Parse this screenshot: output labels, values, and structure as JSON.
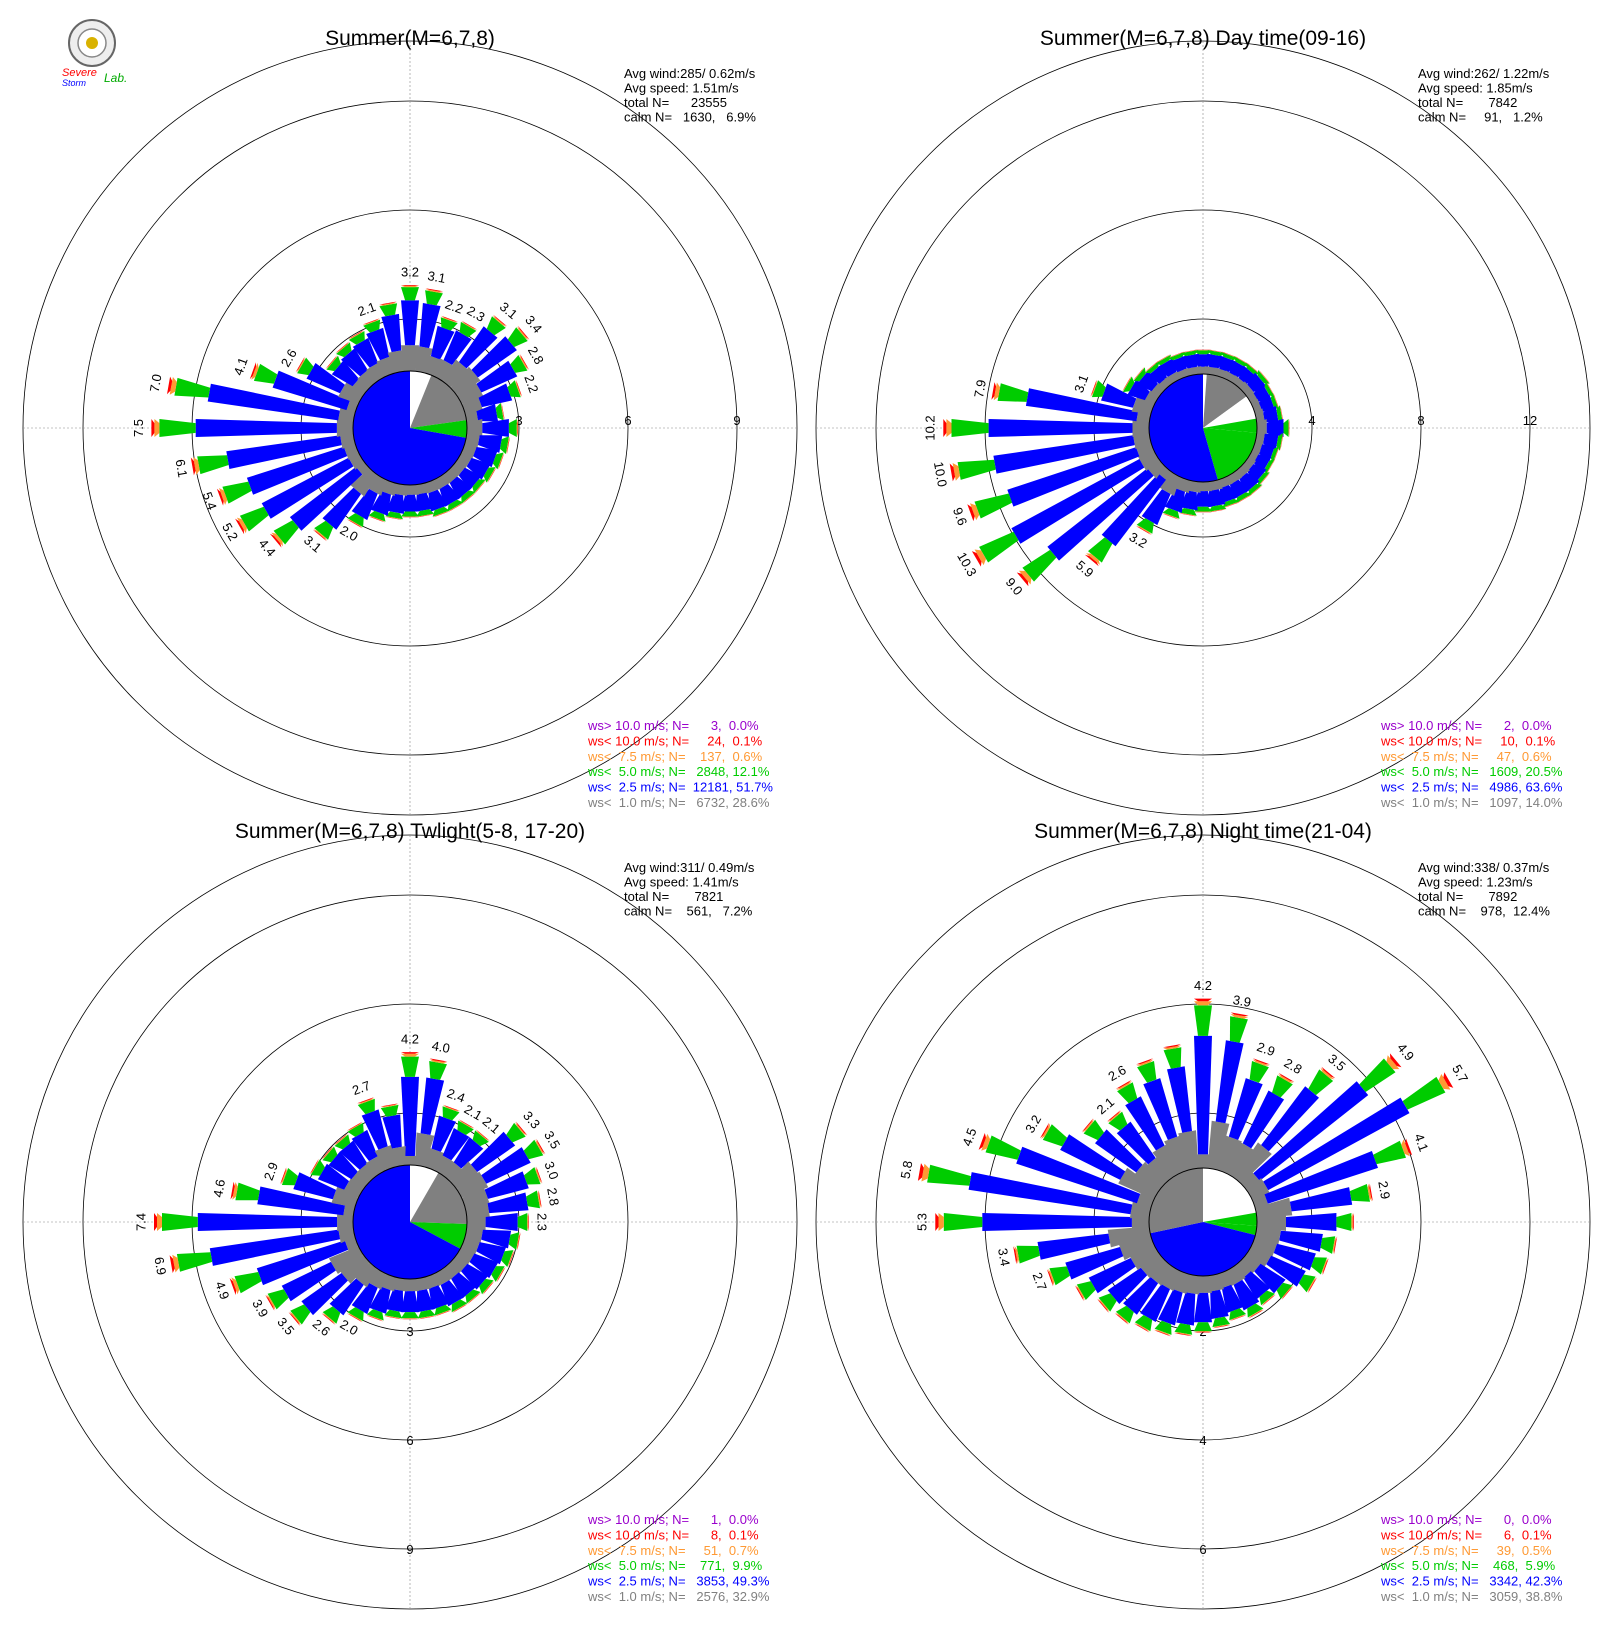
{
  "logo": {
    "line1": "Severe",
    "line2": "Storm",
    "line3": "Lab."
  },
  "colors": {
    "ws10plus": "#9900cc",
    "ws10": "#ff0000",
    "ws7_5": "#ff9933",
    "ws5": "#00cc00",
    "ws2_5": "#0000ff",
    "ws1": "#808080",
    "calm": "#ffffff"
  },
  "chart_data": [
    {
      "type": "wind-rose",
      "title": "Summer(M=6,7,8)",
      "rings": [
        3,
        6,
        9
      ],
      "stats": [
        "Avg wind:285/ 0.62m/s",
        "Avg speed: 1.51m/s",
        "total N=      23555",
        "calm N=   1630,   6.9%"
      ],
      "legend": [
        {
          "text": "ws> 10.0 m/s; N=      3,  0.0%",
          "color": "#9900cc"
        },
        {
          "text": "ws< 10.0 m/s; N=     24,  0.1%",
          "color": "#ff0000"
        },
        {
          "text": "ws<  7.5 m/s; N=    137,  0.6%",
          "color": "#ff9933"
        },
        {
          "text": "ws<  5.0 m/s; N=   2848, 12.1%",
          "color": "#00cc00"
        },
        {
          "text": "ws<  2.5 m/s; N=  12181, 51.7%",
          "color": "#0000ff"
        },
        {
          "text": "ws<  1.0 m/s; N=   6732, 28.6%",
          "color": "#808080"
        }
      ],
      "core": [
        {
          "from": 0,
          "to": 22,
          "color": "#ffffff"
        },
        {
          "from": 22,
          "to": 82,
          "color": "#808080"
        },
        {
          "from": 82,
          "to": 100,
          "color": "#00cc00"
        },
        {
          "from": 100,
          "to": 360,
          "color": "#0000ff"
        }
      ],
      "rays": [
        {
          "dir": 0,
          "total": 3.2,
          "label": "3.2"
        },
        {
          "dir": 10,
          "total": 3.1,
          "label": "3.1"
        },
        {
          "dir": 20,
          "total": 2.2,
          "label": "2.2"
        },
        {
          "dir": 30,
          "total": 2.3,
          "label": "2.3"
        },
        {
          "dir": 40,
          "total": 3.1,
          "label": "3.1"
        },
        {
          "dir": 50,
          "total": 3.4,
          "label": "3.4"
        },
        {
          "dir": 60,
          "total": 2.8,
          "label": "2.8"
        },
        {
          "dir": 70,
          "total": 2.2,
          "label": "2.2"
        },
        {
          "dir": 80,
          "total": 1.4,
          "label": ""
        },
        {
          "dir": 90,
          "total": 1.9,
          "label": ""
        },
        {
          "dir": 100,
          "total": 1.6,
          "label": ""
        },
        {
          "dir": 110,
          "total": 1.5,
          "label": ""
        },
        {
          "dir": 120,
          "total": 1.4,
          "label": ""
        },
        {
          "dir": 130,
          "total": 1.3,
          "label": ""
        },
        {
          "dir": 140,
          "total": 1.3,
          "label": ""
        },
        {
          "dir": 150,
          "total": 1.3,
          "label": ""
        },
        {
          "dir": 160,
          "total": 1.3,
          "label": ""
        },
        {
          "dir": 170,
          "total": 1.2,
          "label": ""
        },
        {
          "dir": 180,
          "total": 1.2,
          "label": ""
        },
        {
          "dir": 190,
          "total": 1.3,
          "label": ""
        },
        {
          "dir": 200,
          "total": 1.5,
          "label": ""
        },
        {
          "dir": 210,
          "total": 2.0,
          "label": "2.0"
        },
        {
          "dir": 220,
          "total": 3.1,
          "label": "3.1"
        },
        {
          "dir": 230,
          "total": 4.4,
          "label": "4.4"
        },
        {
          "dir": 240,
          "total": 5.2,
          "label": "5.2"
        },
        {
          "dir": 250,
          "total": 5.4,
          "label": "5.4"
        },
        {
          "dir": 260,
          "total": 6.1,
          "label": "6.1"
        },
        {
          "dir": 270,
          "total": 7.5,
          "label": "7.5"
        },
        {
          "dir": 280,
          "total": 7.0,
          "label": "7.0"
        },
        {
          "dir": 290,
          "total": 4.1,
          "label": "4.1"
        },
        {
          "dir": 300,
          "total": 2.6,
          "label": "2.6"
        },
        {
          "dir": 310,
          "total": 1.7,
          "label": ""
        },
        {
          "dir": 320,
          "total": 1.8,
          "label": ""
        },
        {
          "dir": 330,
          "total": 1.9,
          "label": ""
        },
        {
          "dir": 340,
          "total": 2.1,
          "label": "2.1"
        },
        {
          "dir": 350,
          "total": 2.6,
          "label": ""
        }
      ]
    },
    {
      "type": "wind-rose",
      "title": "Summer(M=6,7,8) Day time(09-16)",
      "rings": [
        4,
        8,
        12
      ],
      "stats": [
        "Avg wind:262/ 1.22m/s",
        "Avg speed: 1.85m/s",
        "total N=       7842",
        "calm N=     91,   1.2%"
      ],
      "legend": [
        {
          "text": "ws> 10.0 m/s; N=      2,  0.0%",
          "color": "#9900cc"
        },
        {
          "text": "ws< 10.0 m/s; N=     10,  0.1%",
          "color": "#ff0000"
        },
        {
          "text": "ws<  7.5 m/s; N=     47,  0.6%",
          "color": "#ff9933"
        },
        {
          "text": "ws<  5.0 m/s; N=   1609, 20.5%",
          "color": "#00cc00"
        },
        {
          "text": "ws<  2.5 m/s; N=   4986, 63.6%",
          "color": "#0000ff"
        },
        {
          "text": "ws<  1.0 m/s; N=   1097, 14.0%",
          "color": "#808080"
        }
      ],
      "core": [
        {
          "from": 0,
          "to": 4,
          "color": "#ffffff"
        },
        {
          "from": 4,
          "to": 54,
          "color": "#808080"
        },
        {
          "from": 54,
          "to": 80,
          "color": "#ffffff"
        },
        {
          "from": 80,
          "to": 95,
          "color": "#00cc00"
        },
        {
          "from": 95,
          "to": 164,
          "color": "#00cc00"
        },
        {
          "from": 164,
          "to": 360,
          "color": "#0000ff"
        }
      ],
      "rays": [
        {
          "dir": 0,
          "total": 1.2,
          "label": ""
        },
        {
          "dir": 10,
          "total": 1.2,
          "label": ""
        },
        {
          "dir": 20,
          "total": 1.2,
          "label": ""
        },
        {
          "dir": 30,
          "total": 1.2,
          "label": ""
        },
        {
          "dir": 40,
          "total": 1.2,
          "label": ""
        },
        {
          "dir": 50,
          "total": 1.3,
          "label": ""
        },
        {
          "dir": 60,
          "total": 1.2,
          "label": ""
        },
        {
          "dir": 70,
          "total": 1.2,
          "label": ""
        },
        {
          "dir": 80,
          "total": 1.3,
          "label": ""
        },
        {
          "dir": 90,
          "total": 1.6,
          "label": ""
        },
        {
          "dir": 100,
          "total": 1.3,
          "label": ""
        },
        {
          "dir": 110,
          "total": 1.2,
          "label": ""
        },
        {
          "dir": 120,
          "total": 1.2,
          "label": ""
        },
        {
          "dir": 130,
          "total": 1.3,
          "label": ""
        },
        {
          "dir": 140,
          "total": 1.4,
          "label": ""
        },
        {
          "dir": 150,
          "total": 1.4,
          "label": ""
        },
        {
          "dir": 160,
          "total": 1.4,
          "label": ""
        },
        {
          "dir": 170,
          "total": 1.5,
          "label": ""
        },
        {
          "dir": 180,
          "total": 1.5,
          "label": ""
        },
        {
          "dir": 190,
          "total": 1.7,
          "label": ""
        },
        {
          "dir": 200,
          "total": 2.0,
          "label": ""
        },
        {
          "dir": 210,
          "total": 3.2,
          "label": "3.2"
        },
        {
          "dir": 220,
          "total": 5.9,
          "label": "5.9"
        },
        {
          "dir": 230,
          "total": 9.0,
          "label": "9.0"
        },
        {
          "dir": 240,
          "total": 10.3,
          "label": "10.3"
        },
        {
          "dir": 250,
          "total": 9.6,
          "label": "9.6"
        },
        {
          "dir": 260,
          "total": 10.0,
          "label": "10.0"
        },
        {
          "dir": 270,
          "total": 10.2,
          "label": "10.2"
        },
        {
          "dir": 280,
          "total": 7.9,
          "label": "7.9"
        },
        {
          "dir": 290,
          "total": 3.1,
          "label": "3.1"
        },
        {
          "dir": 300,
          "total": 1.7,
          "label": ""
        },
        {
          "dir": 310,
          "total": 1.5,
          "label": ""
        },
        {
          "dir": 320,
          "total": 1.3,
          "label": ""
        },
        {
          "dir": 330,
          "total": 1.3,
          "label": ""
        },
        {
          "dir": 340,
          "total": 1.2,
          "label": ""
        },
        {
          "dir": 350,
          "total": 1.2,
          "label": ""
        }
      ]
    },
    {
      "type": "wind-rose",
      "title": "Summer(M=6,7,8) Twlight(5-8, 17-20)",
      "rings": [
        3,
        6,
        9
      ],
      "stats": [
        "Avg wind:311/ 0.49m/s",
        "Avg speed: 1.41m/s",
        "total N=       7821",
        "calm N=    561,   7.2%"
      ],
      "legend": [
        {
          "text": "ws> 10.0 m/s; N=      1,  0.0%",
          "color": "#9900cc"
        },
        {
          "text": "ws< 10.0 m/s; N=      8,  0.1%",
          "color": "#ff0000"
        },
        {
          "text": "ws<  7.5 m/s; N=     51,  0.7%",
          "color": "#ff9933"
        },
        {
          "text": "ws<  5.0 m/s; N=    771,  9.9%",
          "color": "#00cc00"
        },
        {
          "text": "ws<  2.5 m/s; N=   3853, 49.3%",
          "color": "#0000ff"
        },
        {
          "text": "ws<  1.0 m/s; N=   2576, 32.9%",
          "color": "#808080"
        }
      ],
      "core": [
        {
          "from": 0,
          "to": 30,
          "color": "#ffffff"
        },
        {
          "from": 30,
          "to": 92,
          "color": "#808080"
        },
        {
          "from": 92,
          "to": 118,
          "color": "#00cc00"
        },
        {
          "from": 118,
          "to": 360,
          "color": "#0000ff"
        }
      ],
      "rays": [
        {
          "dir": 0,
          "total": 4.2,
          "label": "4.2"
        },
        {
          "dir": 10,
          "total": 4.0,
          "label": "4.0"
        },
        {
          "dir": 20,
          "total": 2.4,
          "label": "2.4"
        },
        {
          "dir": 30,
          "total": 2.1,
          "label": "2.1"
        },
        {
          "dir": 40,
          "total": 2.1,
          "label": "2.1"
        },
        {
          "dir": 50,
          "total": 3.3,
          "label": "3.3"
        },
        {
          "dir": 60,
          "total": 3.5,
          "label": "3.5"
        },
        {
          "dir": 70,
          "total": 3.0,
          "label": "3.0"
        },
        {
          "dir": 80,
          "total": 2.8,
          "label": "2.8"
        },
        {
          "dir": 90,
          "total": 2.3,
          "label": "2.3"
        },
        {
          "dir": 100,
          "total": 2.0,
          "label": ""
        },
        {
          "dir": 110,
          "total": 1.9,
          "label": ""
        },
        {
          "dir": 120,
          "total": 1.8,
          "label": ""
        },
        {
          "dir": 130,
          "total": 1.7,
          "label": ""
        },
        {
          "dir": 140,
          "total": 1.6,
          "label": ""
        },
        {
          "dir": 150,
          "total": 1.6,
          "label": ""
        },
        {
          "dir": 160,
          "total": 1.5,
          "label": ""
        },
        {
          "dir": 170,
          "total": 1.5,
          "label": ""
        },
        {
          "dir": 180,
          "total": 1.5,
          "label": ""
        },
        {
          "dir": 190,
          "total": 1.5,
          "label": ""
        },
        {
          "dir": 200,
          "total": 1.7,
          "label": ""
        },
        {
          "dir": 210,
          "total": 2.0,
          "label": "2.0"
        },
        {
          "dir": 220,
          "total": 2.6,
          "label": "2.6"
        },
        {
          "dir": 230,
          "total": 3.5,
          "label": "3.5"
        },
        {
          "dir": 240,
          "total": 3.9,
          "label": "3.9"
        },
        {
          "dir": 250,
          "total": 4.9,
          "label": "4.9"
        },
        {
          "dir": 260,
          "total": 6.9,
          "label": "6.9"
        },
        {
          "dir": 270,
          "total": 7.4,
          "label": "7.4"
        },
        {
          "dir": 280,
          "total": 4.6,
          "label": "4.6"
        },
        {
          "dir": 290,
          "total": 2.9,
          "label": "2.9"
        },
        {
          "dir": 300,
          "total": 2.0,
          "label": ""
        },
        {
          "dir": 310,
          "total": 1.9,
          "label": ""
        },
        {
          "dir": 320,
          "total": 1.9,
          "label": ""
        },
        {
          "dir": 330,
          "total": 2.0,
          "label": ""
        },
        {
          "dir": 340,
          "total": 2.7,
          "label": "2.7"
        },
        {
          "dir": 350,
          "total": 2.3,
          "label": ""
        }
      ]
    },
    {
      "type": "wind-rose",
      "title": "Summer(M=6,7,8) Night time(21-04)",
      "rings": [
        2,
        4,
        6
      ],
      "stats": [
        "Avg wind:338/ 0.37m/s",
        "Avg speed: 1.23m/s",
        "total N=       7892",
        "calm N=    978,  12.4%"
      ],
      "legend": [
        {
          "text": "ws> 10.0 m/s; N=      0,  0.0%",
          "color": "#9900cc"
        },
        {
          "text": "ws< 10.0 m/s; N=      6,  0.1%",
          "color": "#ff0000"
        },
        {
          "text": "ws<  7.5 m/s; N=     39,  0.5%",
          "color": "#ff9933"
        },
        {
          "text": "ws<  5.0 m/s; N=    468,  5.9%",
          "color": "#00cc00"
        },
        {
          "text": "ws<  2.5 m/s; N=   3342, 42.3%",
          "color": "#0000ff"
        },
        {
          "text": "ws<  1.0 m/s; N=   3059, 38.8%",
          "color": "#808080"
        }
      ],
      "core": [
        {
          "from": 0,
          "to": 44,
          "color": "#ffffff"
        },
        {
          "from": 44,
          "to": 80,
          "color": "#ffffff"
        },
        {
          "from": 80,
          "to": 94,
          "color": "#00cc00"
        },
        {
          "from": 94,
          "to": 104,
          "color": "#00cc00"
        },
        {
          "from": 104,
          "to": 258,
          "color": "#0000ff"
        },
        {
          "from": 258,
          "to": 360,
          "color": "#808080"
        }
      ],
      "rays": [
        {
          "dir": 0,
          "total": 4.2,
          "label": "4.2"
        },
        {
          "dir": 10,
          "total": 3.9,
          "label": "3.9"
        },
        {
          "dir": 20,
          "total": 2.9,
          "label": "2.9"
        },
        {
          "dir": 30,
          "total": 2.8,
          "label": "2.8"
        },
        {
          "dir": 40,
          "total": 3.5,
          "label": "3.5"
        },
        {
          "dir": 50,
          "total": 4.9,
          "label": "4.9"
        },
        {
          "dir": 60,
          "total": 5.7,
          "label": "5.7"
        },
        {
          "dir": 70,
          "total": 4.1,
          "label": "4.1"
        },
        {
          "dir": 80,
          "total": 2.9,
          "label": "2.9"
        },
        {
          "dir": 90,
          "total": 2.4,
          "label": ""
        },
        {
          "dir": 100,
          "total": 2.0,
          "label": ""
        },
        {
          "dir": 110,
          "total": 1.9,
          "label": ""
        },
        {
          "dir": 120,
          "total": 1.8,
          "label": ""
        },
        {
          "dir": 130,
          "total": 1.4,
          "label": ""
        },
        {
          "dir": 140,
          "total": 1.2,
          "label": ""
        },
        {
          "dir": 150,
          "total": 1.3,
          "label": ""
        },
        {
          "dir": 160,
          "total": 1.2,
          "label": ""
        },
        {
          "dir": 170,
          "total": 1.3,
          "label": ""
        },
        {
          "dir": 180,
          "total": 1.4,
          "label": ""
        },
        {
          "dir": 190,
          "total": 1.5,
          "label": ""
        },
        {
          "dir": 200,
          "total": 1.6,
          "label": ""
        },
        {
          "dir": 210,
          "total": 1.7,
          "label": ""
        },
        {
          "dir": 220,
          "total": 1.8,
          "label": ""
        },
        {
          "dir": 230,
          "total": 1.9,
          "label": ""
        },
        {
          "dir": 240,
          "total": 2.2,
          "label": ""
        },
        {
          "dir": 250,
          "total": 2.7,
          "label": "2.7"
        },
        {
          "dir": 260,
          "total": 3.4,
          "label": "3.4"
        },
        {
          "dir": 270,
          "total": 5.3,
          "label": "5.3"
        },
        {
          "dir": 280,
          "total": 5.8,
          "label": "5.8"
        },
        {
          "dir": 290,
          "total": 4.5,
          "label": "4.5"
        },
        {
          "dir": 300,
          "total": 3.2,
          "label": "3.2"
        },
        {
          "dir": 310,
          "total": 2.4,
          "label": ""
        },
        {
          "dir": 320,
          "total": 2.1,
          "label": "2.1"
        },
        {
          "dir": 330,
          "total": 2.6,
          "label": "2.6"
        },
        {
          "dir": 340,
          "total": 2.9,
          "label": ""
        },
        {
          "dir": 350,
          "total": 3.1,
          "label": ""
        }
      ]
    }
  ]
}
